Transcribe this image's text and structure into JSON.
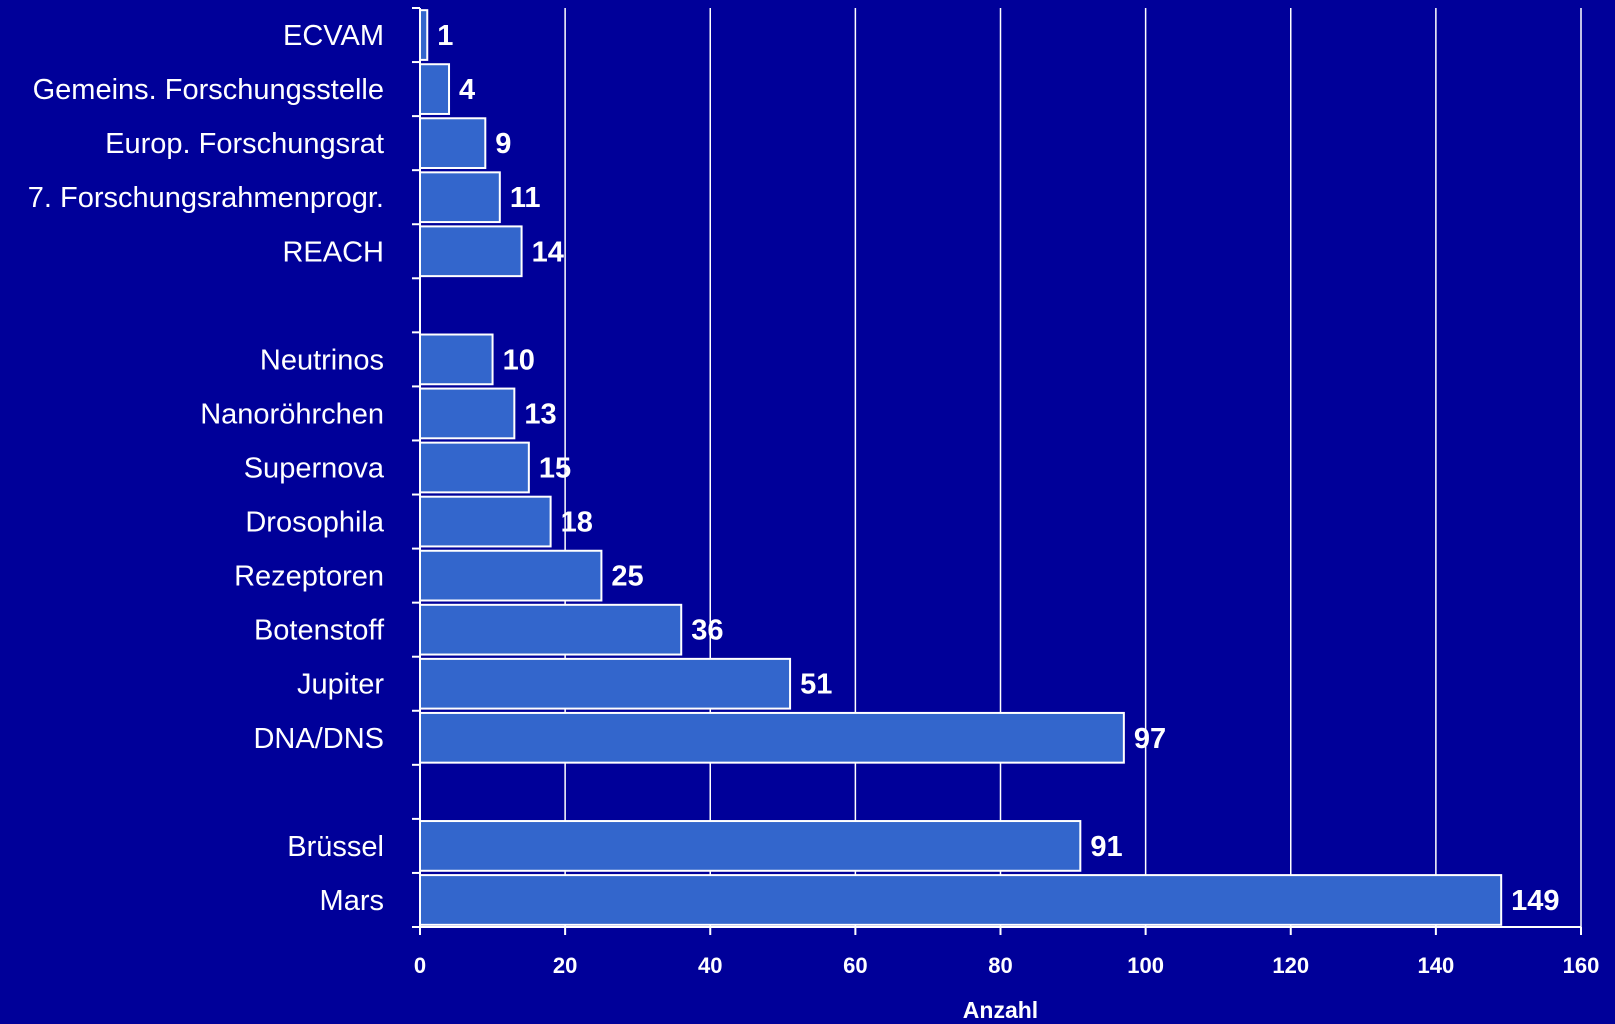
{
  "chart_data": {
    "type": "bar",
    "orientation": "horizontal",
    "categories": [
      "ECVAM",
      "Gemeins. Forschungsstelle",
      "Europ. Forschungsrat",
      "7. Forschungsrahmenprogr.",
      "REACH",
      "",
      "Neutrinos",
      "Nanoröhrchen",
      "Supernova",
      "Drosophila",
      "Rezeptoren",
      "Botenstoff",
      "Jupiter",
      "DNA/DNS",
      "",
      "Brüssel",
      "Mars"
    ],
    "values": [
      1,
      4,
      9,
      11,
      14,
      null,
      10,
      13,
      15,
      18,
      25,
      36,
      51,
      97,
      null,
      91,
      149
    ],
    "value_labels": [
      "1",
      "4",
      "9",
      "11",
      "14",
      "",
      "10",
      "13",
      "15",
      "18",
      "25",
      "36",
      "51",
      "97",
      "",
      "91",
      "149"
    ],
    "xlabel": "Anzahl",
    "ylabel": "",
    "xlim": [
      0,
      160
    ],
    "xticks": [
      "0",
      "20",
      "40",
      "60",
      "80",
      "100",
      "120",
      "140",
      "160"
    ],
    "grid": true,
    "legend": "none",
    "colors": {
      "background": "#000099",
      "bar": "#3366cc",
      "bar_border": "#ffffff",
      "text": "#ffffff"
    }
  }
}
